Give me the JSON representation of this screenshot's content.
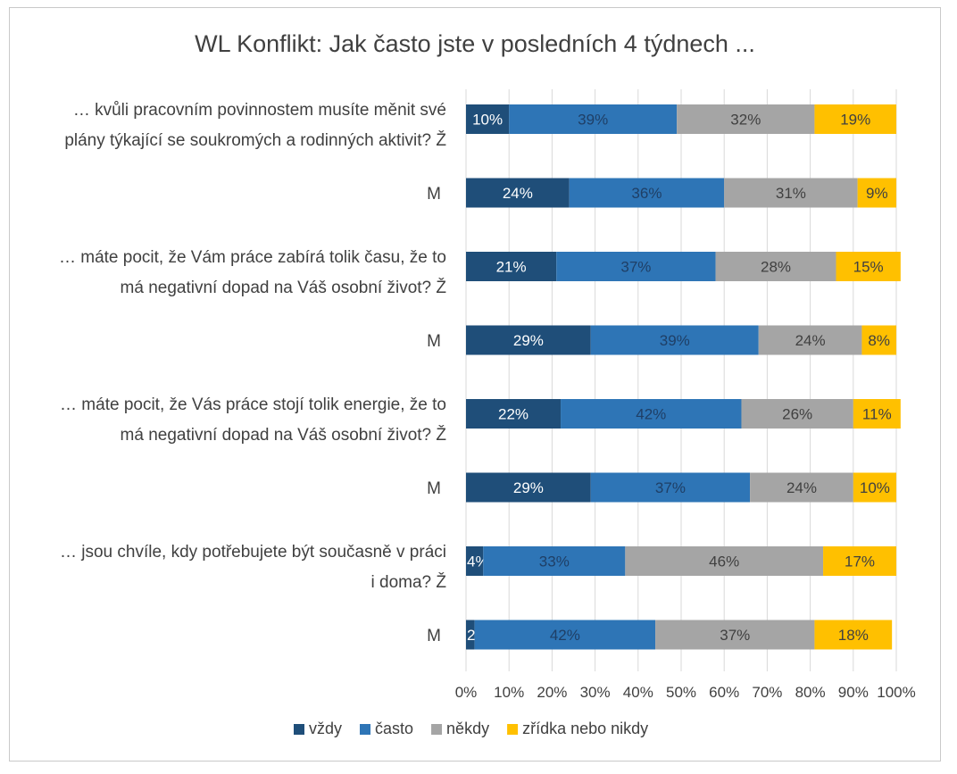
{
  "chart_data": {
    "type": "bar",
    "orientation": "horizontal",
    "stacked": true,
    "percent": true,
    "title": "WL Konflikt: Jak často jste v posledních 4 týdnech ...",
    "xlim": [
      0,
      100
    ],
    "xticks": [
      "0%",
      "10%",
      "20%",
      "30%",
      "40%",
      "50%",
      "60%",
      "70%",
      "80%",
      "90%",
      "100%"
    ],
    "legend_position": "bottom",
    "series": [
      {
        "name": "vždy",
        "color": "#1f4e79",
        "text_color": "#ffffff",
        "values": [
          10,
          24,
          21,
          29,
          22,
          29,
          4,
          2
        ]
      },
      {
        "name": "často",
        "color": "#2e75b6",
        "text_color": "#1f3f66",
        "values": [
          39,
          36,
          37,
          39,
          42,
          37,
          33,
          42
        ]
      },
      {
        "name": "někdy",
        "color": "#a5a5a5",
        "text_color": "#404040",
        "values": [
          32,
          31,
          28,
          24,
          26,
          24,
          46,
          37
        ]
      },
      {
        "name": "zřídka nebo nikdy",
        "color": "#ffc000",
        "text_color": "#404040",
        "values": [
          19,
          9,
          15,
          8,
          11,
          10,
          17,
          18
        ]
      }
    ],
    "rows": [
      {
        "lines": [
          "… kvůli pracovním povinnostem musíte měnit své",
          "plány týkající se soukromých a rodinných aktivit? Ž"
        ]
      },
      {
        "lines": [
          "M"
        ]
      },
      {
        "lines": [
          "… máte pocit, že Vám práce zabírá tolik času, že to",
          "má negativní dopad na Váš osobní život? Ž"
        ]
      },
      {
        "lines": [
          "M"
        ]
      },
      {
        "lines": [
          "… máte pocit, že Vás práce stojí tolik energie, že to",
          "má negativní dopad na  Váš osobní život? Ž"
        ]
      },
      {
        "lines": [
          "M"
        ]
      },
      {
        "lines": [
          "… jsou chvíle, kdy potřebujete být současně v práci",
          "i doma? Ž"
        ]
      },
      {
        "lines": [
          "M"
        ]
      }
    ]
  }
}
